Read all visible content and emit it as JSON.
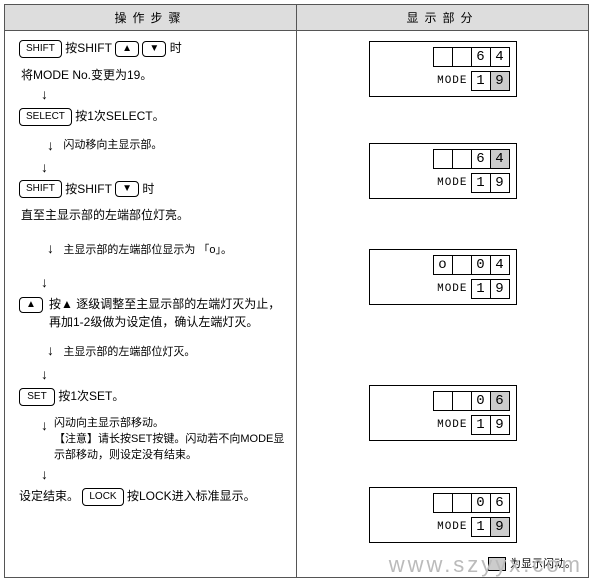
{
  "headers": {
    "left": "操作步骤",
    "right": "显示部分"
  },
  "buttons": {
    "shift": "SHIFT",
    "select": "SELECT",
    "set": "SET",
    "lock": "LOCK",
    "up": "▲",
    "down": "▼"
  },
  "steps": {
    "s1": {
      "line1_pre": "",
      "line1_mid": "按SHIFT",
      "line1_post": "时",
      "line2": "将MODE No.变更为19。"
    },
    "s2": {
      "line1": "按1次SELECT。",
      "note": "闪动移向主显示部。"
    },
    "s3": {
      "line1_pre": "按SHIFT",
      "line1_post": "时",
      "line2": "直至主显示部的左端部位灯亮。",
      "note": "主显示部的左端部位显示为 「o」。"
    },
    "s4": {
      "line1": "按▲ 逐级调整至主显示部的左端灯灭为止，再加1-2级做为设定值，确认左端灯灭。",
      "note": "主显示部的左端部位灯灭。"
    },
    "s5": {
      "line1": "按1次SET。",
      "note1": "闪动向主显示部移动。",
      "note2": "【注意】请长按SET按键。闪动若不向MODE显示部移动，则设定没有结束。"
    },
    "s6": {
      "line1_pre": "设定结束。",
      "line1_post": "按LOCK进入标准显示。"
    }
  },
  "displays": {
    "d1": {
      "top": [
        "",
        "",
        "6",
        "4"
      ],
      "top_blink": [
        false,
        false,
        false,
        false
      ],
      "bot_label": "MODE",
      "bot": [
        "1",
        "9"
      ],
      "bot_blink": [
        false,
        true
      ]
    },
    "d2": {
      "top": [
        "",
        "",
        "6",
        "4"
      ],
      "top_blink": [
        false,
        false,
        false,
        true
      ],
      "bot_label": "MODE",
      "bot": [
        "1",
        "9"
      ],
      "bot_blink": [
        false,
        false
      ]
    },
    "d3": {
      "top": [
        "o",
        "",
        "0",
        "4"
      ],
      "top_blink": [
        false,
        false,
        false,
        false
      ],
      "bot_label": "MODE",
      "bot": [
        "1",
        "9"
      ],
      "bot_blink": [
        false,
        false
      ]
    },
    "d4": {
      "top": [
        "",
        "",
        "0",
        "6"
      ],
      "top_blink": [
        false,
        false,
        false,
        true
      ],
      "bot_label": "MODE",
      "bot": [
        "1",
        "9"
      ],
      "bot_blink": [
        false,
        false
      ]
    },
    "d5": {
      "top": [
        "",
        "",
        "0",
        "6"
      ],
      "top_blink": [
        false,
        false,
        false,
        false
      ],
      "bot_label": "MODE",
      "bot": [
        "1",
        "9"
      ],
      "bot_blink": [
        false,
        true
      ]
    }
  },
  "legend": "为显示闪动。",
  "watermark": "www.szyyx.com"
}
